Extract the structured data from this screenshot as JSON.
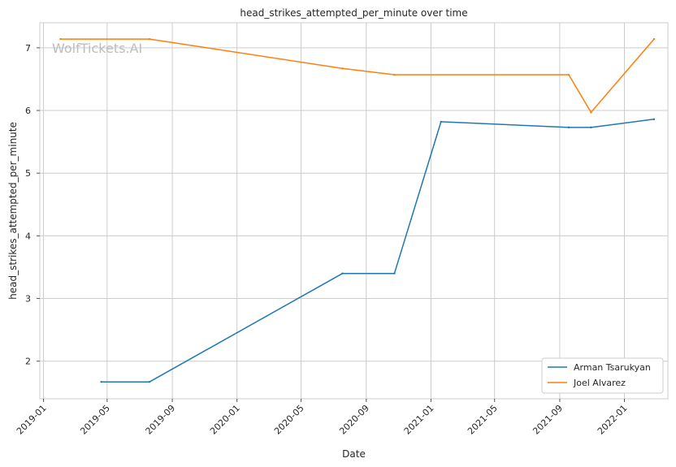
{
  "watermark": "WolfTickets.AI",
  "chart_data": {
    "type": "line",
    "title": "head_strikes_attempted_per_minute over time",
    "xlabel": "Date",
    "ylabel": "head_strikes_attempted_per_minute",
    "x_ticks": [
      "2019-01",
      "2019-05",
      "2019-09",
      "2020-01",
      "2020-05",
      "2020-09",
      "2021-01",
      "2021-05",
      "2021-09",
      "2022-01"
    ],
    "y_ticks": [
      2,
      3,
      4,
      5,
      6,
      7
    ],
    "xlim": [
      "2018-12-25",
      "2022-03-24"
    ],
    "ylim": [
      1.4,
      7.4
    ],
    "grid": true,
    "legend_position": "lower-right",
    "series": [
      {
        "name": "Arman Tsarukyan",
        "color": "#1f77b4",
        "points": [
          {
            "x": "2019-04-20",
            "y": 1.67
          },
          {
            "x": "2019-07-20",
            "y": 1.67
          },
          {
            "x": "2020-07-18",
            "y": 3.4
          },
          {
            "x": "2020-10-24",
            "y": 3.4
          },
          {
            "x": "2021-01-20",
            "y": 5.82
          },
          {
            "x": "2021-09-18",
            "y": 5.73
          },
          {
            "x": "2021-10-30",
            "y": 5.73
          },
          {
            "x": "2022-02-26",
            "y": 5.86
          }
        ]
      },
      {
        "name": "Joel Alvarez",
        "color": "#ff7f0e",
        "points": [
          {
            "x": "2019-02-02",
            "y": 7.14
          },
          {
            "x": "2019-07-20",
            "y": 7.14
          },
          {
            "x": "2020-07-18",
            "y": 6.67
          },
          {
            "x": "2020-10-24",
            "y": 6.57
          },
          {
            "x": "2021-09-18",
            "y": 6.57
          },
          {
            "x": "2021-10-30",
            "y": 5.97
          },
          {
            "x": "2022-02-26",
            "y": 7.14
          }
        ]
      }
    ]
  }
}
